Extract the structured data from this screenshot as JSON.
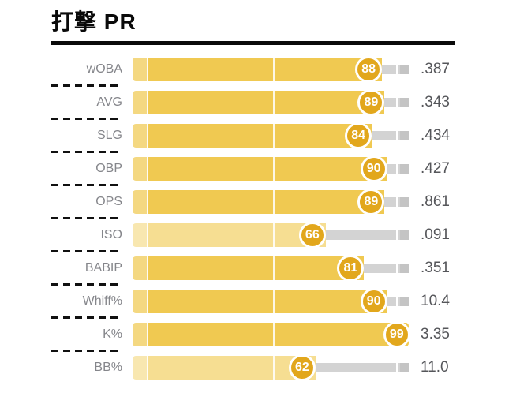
{
  "title": "打撃 PR",
  "colors": {
    "bar_strong": "#f0c951",
    "bar_light": "#f6de92",
    "badge": "#e2a71c",
    "track": "#d3d3d3",
    "track_end": "#c4c4c4",
    "label_text": "#85868b",
    "value_text": "#55565a",
    "title_text": "#0a0a0a"
  },
  "chart_data": {
    "type": "bar",
    "title": "打撃 PR",
    "orientation": "horizontal",
    "scale": [
      0,
      100
    ],
    "gridline_ticks": [
      0,
      50,
      100
    ],
    "legend": "none",
    "rows": [
      {
        "label": "wOBA",
        "percentile": 88,
        "value": ".387",
        "tone": "strong"
      },
      {
        "label": "AVG",
        "percentile": 89,
        "value": ".343",
        "tone": "strong"
      },
      {
        "label": "SLG",
        "percentile": 84,
        "value": ".434",
        "tone": "strong"
      },
      {
        "label": "OBP",
        "percentile": 90,
        "value": ".427",
        "tone": "strong"
      },
      {
        "label": "OPS",
        "percentile": 89,
        "value": ".861",
        "tone": "strong"
      },
      {
        "label": "ISO",
        "percentile": 66,
        "value": ".091",
        "tone": "light"
      },
      {
        "label": "BABIP",
        "percentile": 81,
        "value": ".351",
        "tone": "strong"
      },
      {
        "label": "Whiff%",
        "percentile": 90,
        "value": "10.4",
        "tone": "strong"
      },
      {
        "label": "K%",
        "percentile": 99,
        "value": "3.35",
        "tone": "strong"
      },
      {
        "label": "BB%",
        "percentile": 62,
        "value": "11.0",
        "tone": "light"
      }
    ]
  }
}
